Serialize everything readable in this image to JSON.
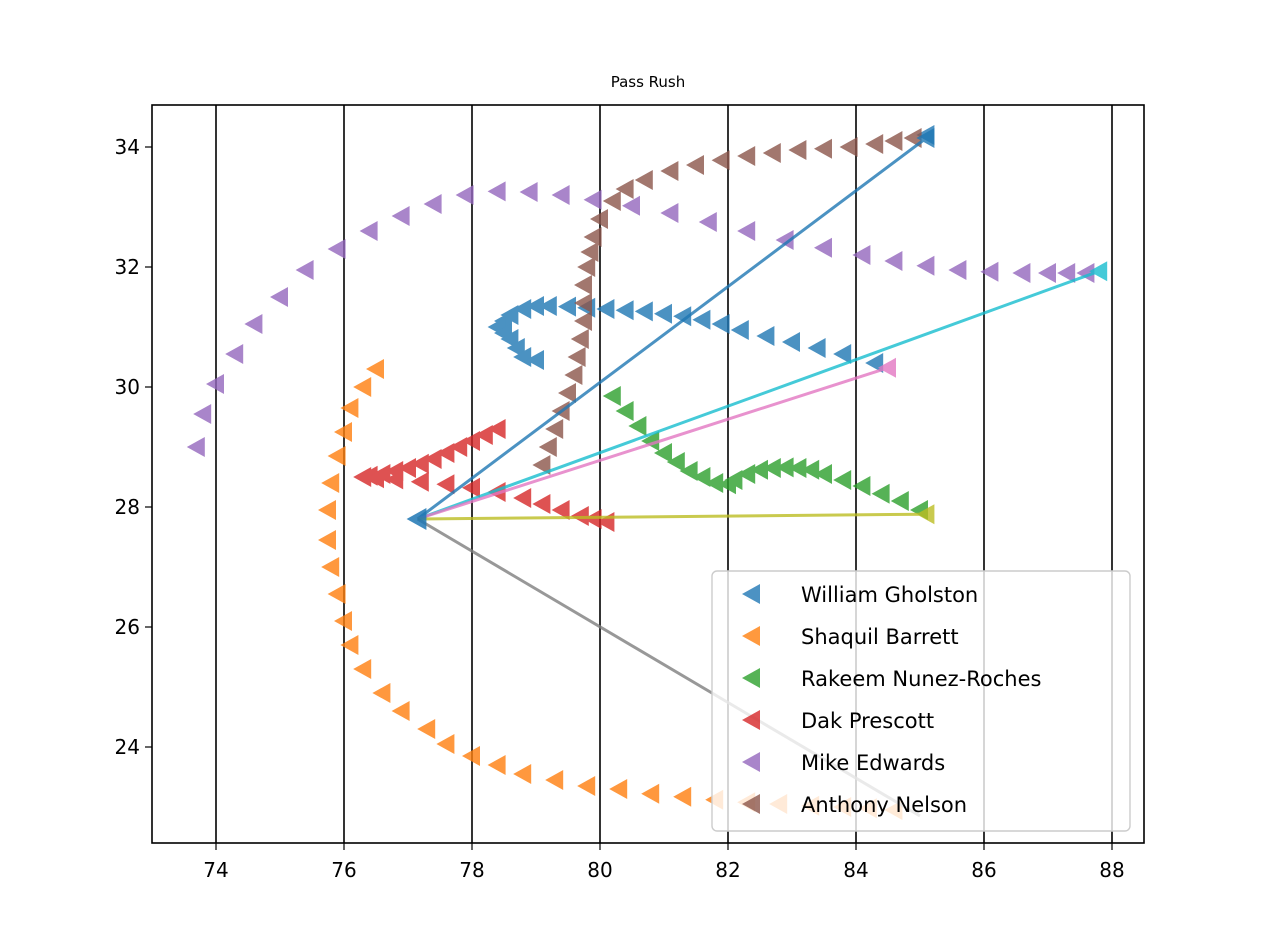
{
  "chart_data": {
    "type": "scatter",
    "title": "Pass Rush",
    "xlabel": "",
    "ylabel": "",
    "xlim": [
      73,
      88.5
    ],
    "ylim": [
      22.4,
      34.7
    ],
    "xticks": [
      74,
      76,
      78,
      80,
      82,
      84,
      86,
      88
    ],
    "yticks": [
      24,
      26,
      28,
      30,
      32,
      34
    ],
    "x_tick_labels": [
      "74",
      "76",
      "78",
      "80",
      "82",
      "84",
      "86",
      "88"
    ],
    "y_tick_labels": [
      "24",
      "26",
      "28",
      "30",
      "32",
      "34"
    ],
    "vertical_gridlines": true,
    "marker": "left-pointing triangle",
    "legend_position": "lower-right",
    "series": [
      {
        "name": "William Gholston",
        "color": "#1f77b4",
        "x": [
          85.1,
          84.3,
          83.8,
          83.4,
          83.0,
          82.6,
          82.2,
          81.9,
          81.6,
          81.3,
          81.0,
          80.7,
          80.4,
          80.1,
          79.8,
          79.5,
          79.2,
          79.0,
          78.8,
          78.6,
          78.5,
          78.4,
          78.5,
          78.6,
          78.7,
          78.8,
          79.0
        ],
        "y": [
          34.2,
          30.4,
          30.55,
          30.65,
          30.75,
          30.85,
          30.95,
          31.05,
          31.12,
          31.18,
          31.22,
          31.26,
          31.28,
          31.3,
          31.32,
          31.34,
          31.35,
          31.35,
          31.3,
          31.2,
          31.1,
          31.0,
          30.9,
          30.8,
          30.65,
          30.5,
          30.45
        ]
      },
      {
        "name": "Shaquil Barrett",
        "color": "#ff7f0e",
        "x": [
          76.5,
          76.3,
          76.1,
          76.0,
          75.9,
          75.8,
          75.75,
          75.75,
          75.8,
          75.9,
          76.0,
          76.1,
          76.3,
          76.6,
          76.9,
          77.3,
          77.6,
          78.0,
          78.4,
          78.8,
          79.3,
          79.8,
          80.3,
          80.8,
          81.3,
          81.8,
          82.3,
          82.8,
          83.3,
          83.8,
          84.2,
          84.6
        ],
        "y": [
          30.3,
          30.0,
          29.65,
          29.25,
          28.85,
          28.4,
          27.95,
          27.45,
          27.0,
          26.55,
          26.1,
          25.7,
          25.3,
          24.9,
          24.6,
          24.3,
          24.05,
          23.85,
          23.7,
          23.55,
          23.45,
          23.35,
          23.3,
          23.22,
          23.17,
          23.12,
          23.08,
          23.05,
          23.02,
          23.0,
          22.98,
          22.95
        ]
      },
      {
        "name": "Rakeem Nunez-Roches",
        "color": "#2ca02c",
        "x": [
          80.2,
          80.4,
          80.6,
          80.8,
          81.0,
          81.2,
          81.4,
          81.6,
          81.8,
          82.0,
          82.1,
          82.3,
          82.5,
          82.7,
          82.9,
          83.1,
          83.3,
          83.5,
          83.8,
          84.1,
          84.4,
          84.7,
          85.0
        ],
        "y": [
          29.85,
          29.6,
          29.35,
          29.1,
          28.9,
          28.75,
          28.6,
          28.5,
          28.4,
          28.38,
          28.45,
          28.55,
          28.62,
          28.65,
          28.66,
          28.65,
          28.62,
          28.55,
          28.45,
          28.35,
          28.22,
          28.1,
          27.95
        ]
      },
      {
        "name": "Dak Prescott",
        "color": "#d62728",
        "x": [
          78.4,
          78.2,
          78.0,
          77.8,
          77.6,
          77.4,
          77.2,
          77.0,
          76.8,
          76.6,
          76.4,
          76.3,
          76.5,
          76.8,
          77.2,
          77.6,
          78.0,
          78.4,
          78.8,
          79.1,
          79.4,
          79.7,
          79.9,
          80.1
        ],
        "y": [
          29.3,
          29.2,
          29.1,
          29.0,
          28.9,
          28.8,
          28.72,
          28.65,
          28.6,
          28.55,
          28.52,
          28.5,
          28.48,
          28.46,
          28.42,
          28.38,
          28.32,
          28.25,
          28.15,
          28.05,
          27.95,
          27.85,
          27.8,
          27.75
        ]
      },
      {
        "name": "Mike Edwards",
        "color": "#9467bd",
        "x": [
          87.6,
          87.3,
          87.0,
          86.6,
          86.1,
          85.6,
          85.1,
          84.6,
          84.1,
          83.5,
          82.9,
          82.3,
          81.7,
          81.1,
          80.5,
          79.9,
          79.4,
          78.9,
          78.4,
          77.9,
          77.4,
          76.9,
          76.4,
          75.9,
          75.4,
          75.0,
          74.6,
          74.3,
          74.0,
          73.8,
          73.7
        ],
        "y": [
          31.9,
          31.9,
          31.9,
          31.9,
          31.92,
          31.95,
          32.02,
          32.1,
          32.2,
          32.32,
          32.45,
          32.6,
          32.75,
          32.9,
          33.02,
          33.12,
          33.2,
          33.25,
          33.26,
          33.2,
          33.05,
          32.85,
          32.6,
          32.3,
          31.95,
          31.5,
          31.05,
          30.55,
          30.05,
          29.55,
          29.0
        ]
      },
      {
        "name": "Anthony Nelson",
        "color": "#8c564b",
        "x": [
          84.9,
          84.6,
          84.3,
          83.9,
          83.5,
          83.1,
          82.7,
          82.3,
          81.9,
          81.5,
          81.1,
          80.7,
          80.4,
          80.2,
          80.0,
          79.9,
          79.85,
          79.8,
          79.75,
          79.75,
          79.75,
          79.7,
          79.65,
          79.6,
          79.5,
          79.4,
          79.3,
          79.2,
          79.1
        ],
        "y": [
          34.15,
          34.1,
          34.05,
          34.0,
          33.97,
          33.95,
          33.9,
          33.85,
          33.78,
          33.7,
          33.6,
          33.45,
          33.3,
          33.1,
          32.8,
          32.5,
          32.25,
          32.0,
          31.7,
          31.4,
          31.1,
          30.8,
          30.5,
          30.2,
          29.9,
          29.6,
          29.3,
          29.0,
          28.7
        ]
      }
    ],
    "lines": [
      {
        "color": "#1f77b4",
        "from": [
          77.15,
          27.8
        ],
        "to": [
          85.1,
          34.15
        ],
        "end_marker": true
      },
      {
        "color": "#17becf",
        "from": [
          77.15,
          27.8
        ],
        "to": [
          87.8,
          31.93
        ],
        "end_marker": true
      },
      {
        "color": "#e377c2",
        "from": [
          77.15,
          27.8
        ],
        "to": [
          84.5,
          30.32
        ],
        "end_marker": true
      },
      {
        "color": "#bcbd22",
        "from": [
          77.15,
          27.8
        ],
        "to": [
          85.1,
          27.88
        ],
        "end_marker": true
      },
      {
        "color": "#7f7f7f",
        "from": [
          77.15,
          27.8
        ],
        "to": [
          85.0,
          22.85
        ],
        "end_marker": false
      }
    ],
    "origin_marker": {
      "x": 77.15,
      "y": 27.8,
      "color": "#1f77b4"
    }
  }
}
